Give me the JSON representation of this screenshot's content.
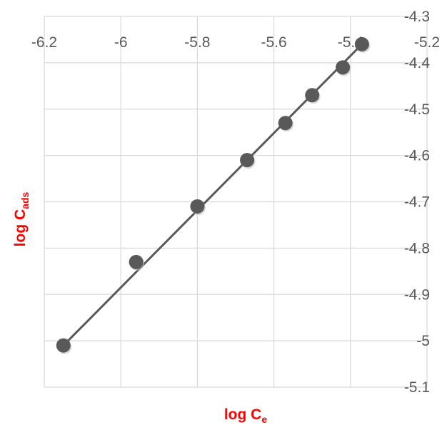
{
  "chart_data": {
    "type": "scatter",
    "xlabel": {
      "main": "log C",
      "sub": "e"
    },
    "ylabel": {
      "main": "log C",
      "sub": "ads"
    },
    "xlim": [
      -6.2,
      -5.2
    ],
    "ylim": [
      -5.1,
      -4.3
    ],
    "x_ticks": [
      -6.2,
      -6,
      -5.8,
      -5.6,
      -5.4,
      -5.2
    ],
    "x_tick_labels": [
      "-6.2",
      "-6",
      "-5.8",
      "-5.6",
      "-5.4",
      "-5.2"
    ],
    "y_ticks": [
      -4.3,
      -4.4,
      -4.5,
      -4.6,
      -4.7,
      -4.8,
      -4.9,
      -5,
      -5.1
    ],
    "y_tick_labels": [
      "-4.3",
      "-4.4",
      "-4.5",
      "-4.6",
      "-4.7",
      "-4.8",
      "-4.9",
      "-5",
      "-5.1"
    ],
    "grid": true,
    "x_axis_position": "top",
    "y_axis_position": "right",
    "series": [
      {
        "x": [
          -6.15,
          -5.96,
          -5.8,
          -5.67,
          -5.57,
          -5.5,
          -5.42,
          -5.37
        ],
        "y": [
          -5.01,
          -4.83,
          -4.71,
          -4.61,
          -4.53,
          -4.47,
          -4.41,
          -4.36
        ],
        "marker_color": "#595959"
      }
    ],
    "trendline": {
      "x": [
        -6.15,
        -5.37
      ],
      "y": [
        -5.01,
        -4.36
      ],
      "color": "#595959"
    }
  },
  "colors": {
    "grid": "#d9d9d9",
    "axis_title": "#ff0000",
    "tick_text": "#595959"
  }
}
